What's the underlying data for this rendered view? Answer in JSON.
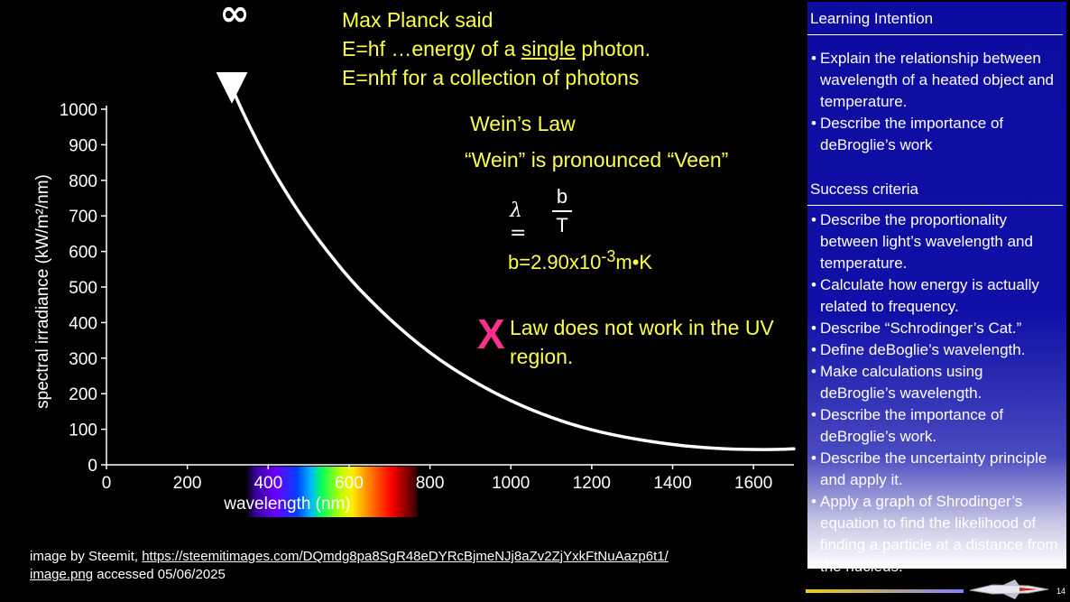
{
  "planck": {
    "line1": "Max Planck said",
    "line2_pre": "E=hf …energy of a ",
    "line2_u": "single",
    "line2_post": " photon.",
    "line3": "E=nhf for a collection of photons"
  },
  "wein": {
    "title": "Wein’s Law",
    "pronounce": "“Wein” is pronounced “Veen”",
    "lambda": "λ =",
    "numerator": "b",
    "denominator": "T",
    "b_base": "b=2.90x10",
    "b_exp": "-3",
    "b_unit": "m•K"
  },
  "law_note": {
    "mark": "X",
    "text": "Law does not work in the UV region."
  },
  "infinity": "∞",
  "credit": {
    "pre": "image by Steemit, ",
    "link": "https://steemitimages.com/DQmdg8pa8SgR48eDYRcBjmeNJj8aZv2ZjYxkFtNuAazp6t1/",
    "link2": "image.png",
    "post": " accessed 05/06/2025"
  },
  "panel": {
    "learning_title": "Learning Intention",
    "learning_items": [
      "Explain the relationship between wavelength of a heated object and temperature.",
      "Describe the importance of deBroglie’s work"
    ],
    "success_title": "Success criteria",
    "success_items": [
      "Describe the proportionality between light’s wavelength and temperature.",
      "Calculate how energy is actually related to frequency.",
      "Describe “Schrodinger’s Cat.”",
      "Define deBoglie’s wavelength.",
      "Make calculations using deBroglie’s wavelength.",
      "Describe the importance of deBroglie’s work.",
      "Describe the uncertainty principle and apply it.",
      "Apply a graph of Shrodinger’s equation to find the likelihood of finding a particle at a distance from the nucleus."
    ]
  },
  "page_number": "14",
  "chart_data": {
    "type": "line",
    "xlabel": "wavelength (nm)",
    "ylabel": "spectral irradiance (kW/m²/nm)",
    "xlim": [
      0,
      1700
    ],
    "ylim": [
      0,
      1000
    ],
    "x_ticks": [
      0,
      200,
      400,
      600,
      800,
      1000,
      1200,
      1400,
      1600
    ],
    "y_ticks": [
      0,
      100,
      200,
      300,
      400,
      500,
      600,
      700,
      800,
      900,
      1000
    ],
    "series": [
      {
        "color": "#ffffff",
        "x": [
          310,
          350,
          400,
          450,
          500,
          550,
          600,
          650,
          700,
          750,
          800,
          850,
          900,
          950,
          1000,
          1050,
          1100,
          1150,
          1200,
          1250,
          1300,
          1350,
          1400,
          1450,
          1500,
          1550,
          1600,
          1650,
          1700
        ],
        "y": [
          1060,
          960,
          850,
          755,
          670,
          595,
          525,
          465,
          410,
          360,
          315,
          275,
          240,
          208,
          180,
          155,
          133,
          114,
          98,
          85,
          74,
          65,
          57,
          51,
          47,
          44,
          43,
          43,
          45
        ]
      }
    ],
    "visible_band_nm": [
      400,
      780
    ]
  }
}
